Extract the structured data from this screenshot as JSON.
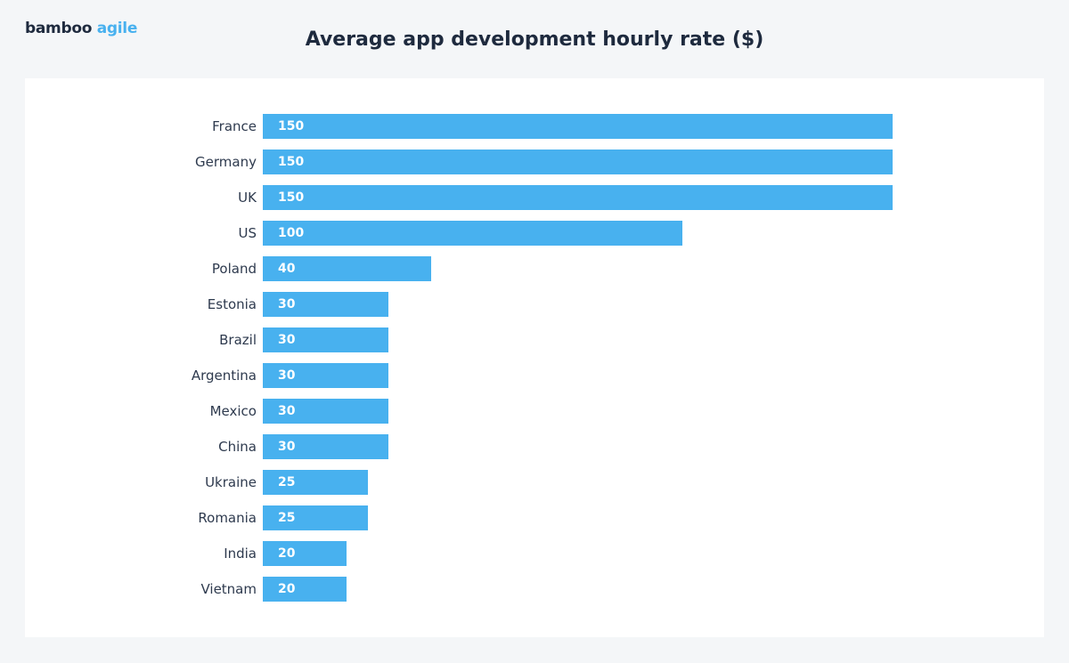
{
  "logo": {
    "part1": "bamboo",
    "part2": "agile"
  },
  "chart_data": {
    "type": "bar",
    "orientation": "horizontal",
    "title": "Average app development hourly rate ($)",
    "categories": [
      "France",
      "Germany",
      "UK",
      "US",
      "Poland",
      "Estonia",
      "Brazil",
      "Argentina",
      "Mexico",
      "China",
      "Ukraine",
      "Romania",
      "India",
      "Vietnam"
    ],
    "values": [
      150,
      150,
      150,
      100,
      40,
      30,
      30,
      30,
      30,
      30,
      25,
      25,
      20,
      20
    ],
    "xlim": [
      0,
      150
    ],
    "grid": false,
    "data_labels": true,
    "bar_color": "#48b1ef"
  }
}
